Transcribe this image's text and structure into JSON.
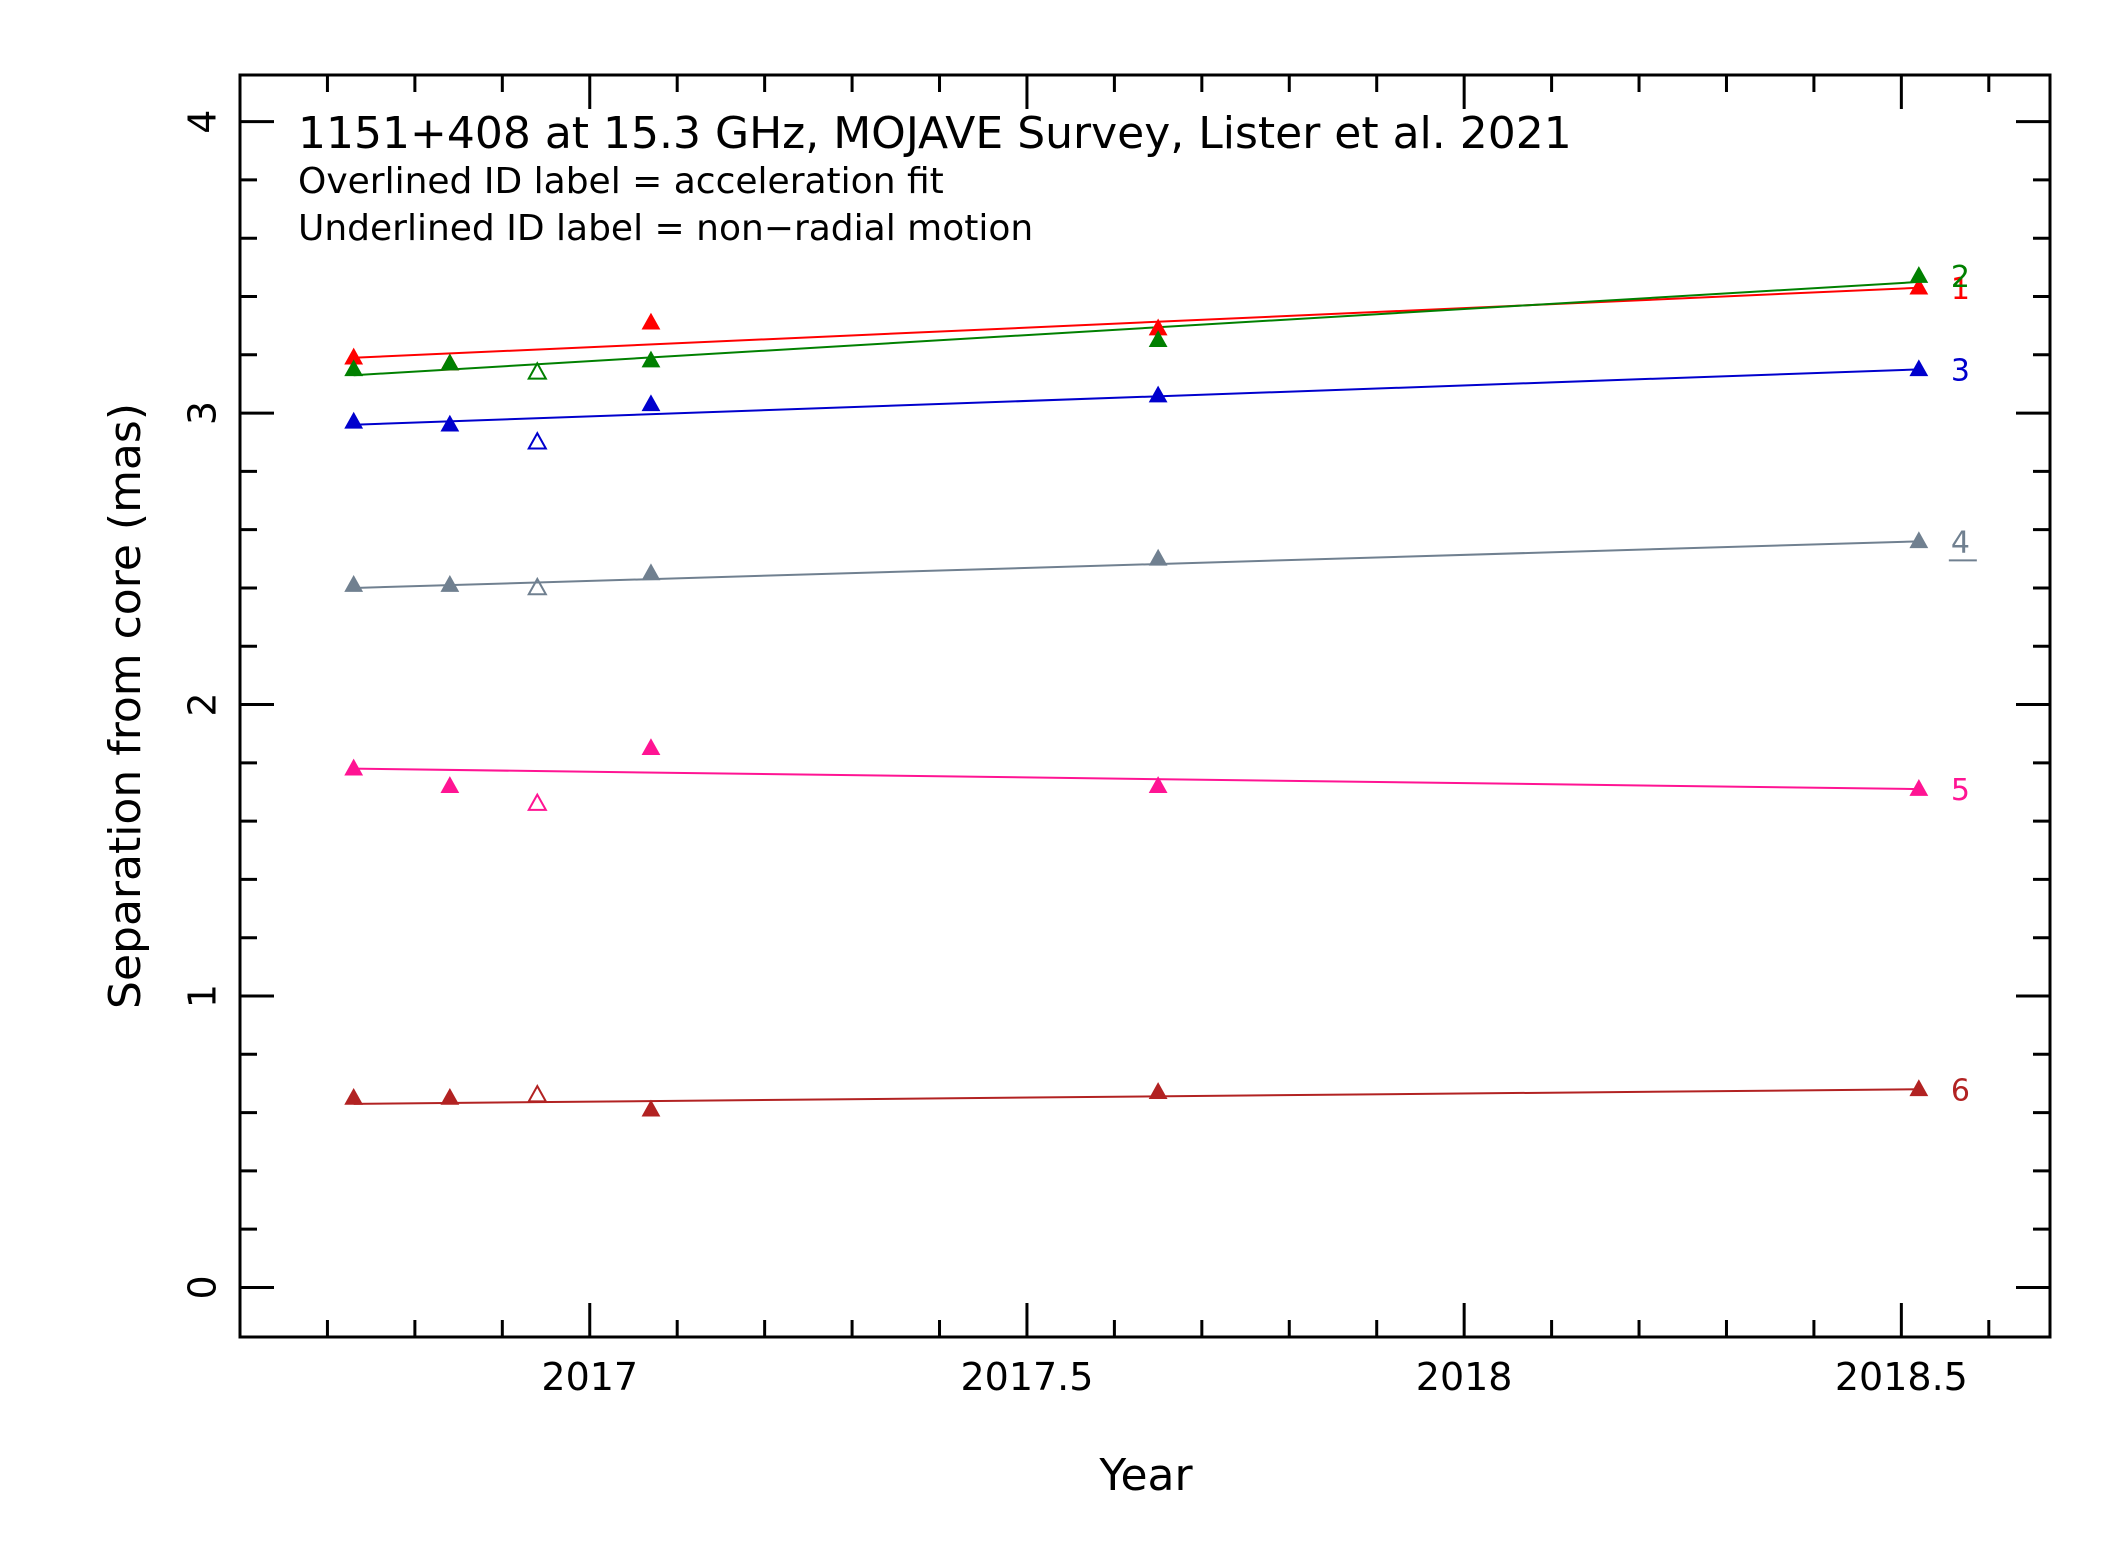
{
  "chart_data": {
    "type": "scatter",
    "title": "1151+408 at 15.3 GHz, MOJAVE Survey, Lister et al. 2021",
    "annotations": [
      "Overlined ID label = acceleration fit",
      "Underlined ID label = non−radial motion"
    ],
    "xlabel": "Year",
    "ylabel": "Separation from core (mas)",
    "xlim": [
      2016.6,
      2018.67
    ],
    "ylim": [
      -0.17,
      4.16
    ],
    "xticks": [
      2017,
      2017.5,
      2018,
      2018.5
    ],
    "xtick_labels": [
      "2017",
      "2017.5",
      "2018",
      "2018.5"
    ],
    "yticks": [
      0,
      1,
      2,
      3,
      4
    ],
    "ytick_labels": [
      "0",
      "1",
      "2",
      "3",
      "4"
    ],
    "grid": false,
    "series": [
      {
        "name": "1",
        "color": "#ff0000",
        "points": [
          [
            2016.73,
            3.19
          ],
          [
            2016.84,
            3.17
          ],
          [
            2017.07,
            3.31
          ],
          [
            2017.65,
            3.29
          ],
          [
            2018.52,
            3.43
          ]
        ],
        "open_points": [],
        "fit": [
          [
            2016.73,
            3.19
          ],
          [
            2018.52,
            3.43
          ]
        ],
        "underlined": false
      },
      {
        "name": "2",
        "color": "#008000",
        "points": [
          [
            2016.73,
            3.15
          ],
          [
            2016.84,
            3.17
          ],
          [
            2017.07,
            3.18
          ],
          [
            2017.65,
            3.25
          ],
          [
            2018.52,
            3.47
          ]
        ],
        "open_points": [
          [
            2016.94,
            3.14
          ]
        ],
        "fit": [
          [
            2016.73,
            3.13
          ],
          [
            2018.52,
            3.45
          ]
        ],
        "underlined": false
      },
      {
        "name": "3",
        "color": "#0000cd",
        "points": [
          [
            2016.73,
            2.97
          ],
          [
            2016.84,
            2.96
          ],
          [
            2017.07,
            3.03
          ],
          [
            2017.65,
            3.06
          ],
          [
            2018.52,
            3.15
          ]
        ],
        "open_points": [
          [
            2016.94,
            2.9
          ]
        ],
        "fit": [
          [
            2016.73,
            2.96
          ],
          [
            2018.52,
            3.15
          ]
        ],
        "underlined": false
      },
      {
        "name": "4",
        "color": "#708090",
        "points": [
          [
            2016.73,
            2.41
          ],
          [
            2016.84,
            2.41
          ],
          [
            2017.07,
            2.45
          ],
          [
            2017.65,
            2.5
          ],
          [
            2018.52,
            2.56
          ]
        ],
        "open_points": [
          [
            2016.94,
            2.4
          ]
        ],
        "fit": [
          [
            2016.73,
            2.4
          ],
          [
            2018.52,
            2.56
          ]
        ],
        "underlined": true
      },
      {
        "name": "5",
        "color": "#ff1493",
        "points": [
          [
            2016.73,
            1.78
          ],
          [
            2016.84,
            1.72
          ],
          [
            2017.07,
            1.85
          ],
          [
            2017.65,
            1.72
          ],
          [
            2018.52,
            1.71
          ]
        ],
        "open_points": [
          [
            2016.94,
            1.66
          ]
        ],
        "fit": [
          [
            2016.73,
            1.78
          ],
          [
            2018.52,
            1.71
          ]
        ],
        "underlined": false
      },
      {
        "name": "6",
        "color": "#b22222",
        "points": [
          [
            2016.73,
            0.65
          ],
          [
            2016.84,
            0.65
          ],
          [
            2017.07,
            0.61
          ],
          [
            2017.65,
            0.67
          ],
          [
            2018.52,
            0.68
          ]
        ],
        "open_points": [
          [
            2016.94,
            0.66
          ]
        ],
        "fit": [
          [
            2016.73,
            0.63
          ],
          [
            2018.52,
            0.68
          ]
        ],
        "underlined": false
      }
    ]
  }
}
